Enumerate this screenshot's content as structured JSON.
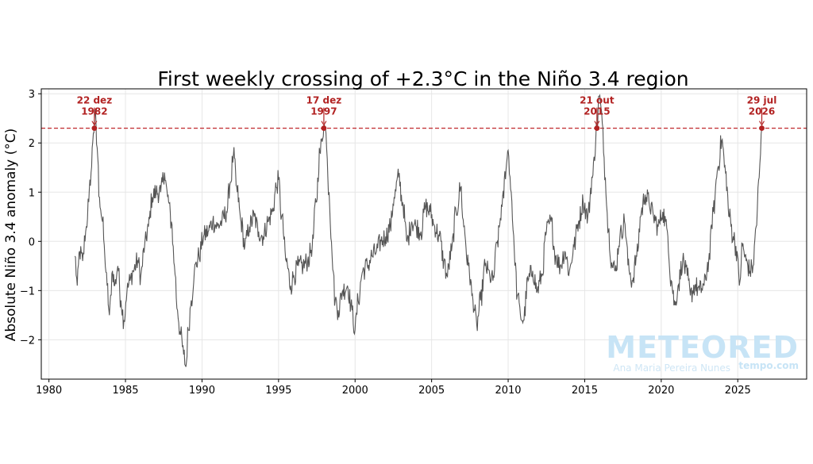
{
  "chart_data": {
    "type": "line",
    "title": "First weekly crossing of +2.3°C in the Niño 3.4 region",
    "xlabel": "",
    "ylabel": "Absolute Niño 3.4 anomaly (°C)",
    "xlim": [
      1979.5,
      2029.5
    ],
    "ylim": [
      -2.8,
      3.1
    ],
    "x_ticks": [
      1980,
      1985,
      1990,
      1995,
      2000,
      2005,
      2010,
      2015,
      2020,
      2025
    ],
    "y_ticks": [
      -2,
      -1,
      0,
      1,
      2,
      3
    ],
    "y_tick_labels": [
      "−2",
      "−1",
      "0",
      "1",
      "2",
      "3"
    ],
    "grid": true,
    "threshold": {
      "value": 2.3,
      "color": "#c0282d",
      "style": "dashed"
    },
    "line_color": "#555555",
    "series": [
      {
        "values_x_y": [
          [
            1981.7,
            -0.3
          ],
          [
            1981.85,
            -0.9
          ],
          [
            1982.0,
            -0.2
          ],
          [
            1982.2,
            -0.4
          ],
          [
            1982.4,
            0.2
          ],
          [
            1982.6,
            0.8
          ],
          [
            1982.75,
            1.4
          ],
          [
            1982.9,
            2.2
          ],
          [
            1983.0,
            2.6
          ],
          [
            1983.15,
            1.9
          ],
          [
            1983.3,
            0.9
          ],
          [
            1983.5,
            0.4
          ],
          [
            1983.65,
            -0.3
          ],
          [
            1983.8,
            -0.9
          ],
          [
            1983.95,
            -1.5
          ],
          [
            1984.15,
            -0.6
          ],
          [
            1984.3,
            -0.9
          ],
          [
            1984.5,
            -0.5
          ],
          [
            1984.7,
            -1.2
          ],
          [
            1984.9,
            -1.6
          ],
          [
            1985.1,
            -1.0
          ],
          [
            1985.3,
            -0.8
          ],
          [
            1985.5,
            -0.6
          ],
          [
            1985.8,
            -0.4
          ],
          [
            1986.0,
            -0.7
          ],
          [
            1986.25,
            -0.1
          ],
          [
            1986.5,
            0.3
          ],
          [
            1986.75,
            0.9
          ],
          [
            1987.0,
            1.0
          ],
          [
            1987.3,
            1.0
          ],
          [
            1987.55,
            1.4
          ],
          [
            1987.75,
            0.9
          ],
          [
            1988.0,
            0.4
          ],
          [
            1988.2,
            -0.5
          ],
          [
            1988.4,
            -1.4
          ],
          [
            1988.6,
            -1.9
          ],
          [
            1988.8,
            -2.3
          ],
          [
            1988.95,
            -2.55
          ],
          [
            1989.1,
            -1.8
          ],
          [
            1989.3,
            -1.2
          ],
          [
            1989.5,
            -0.6
          ],
          [
            1989.8,
            -0.3
          ],
          [
            1990.1,
            0.1
          ],
          [
            1990.4,
            0.2
          ],
          [
            1990.7,
            0.4
          ],
          [
            1991.0,
            0.3
          ],
          [
            1991.3,
            0.4
          ],
          [
            1991.6,
            0.6
          ],
          [
            1991.85,
            1.2
          ],
          [
            1992.05,
            1.75
          ],
          [
            1992.3,
            1.0
          ],
          [
            1992.55,
            0.4
          ],
          [
            1992.8,
            -0.1
          ],
          [
            1993.1,
            0.3
          ],
          [
            1993.4,
            0.5
          ],
          [
            1993.7,
            0.2
          ],
          [
            1994.0,
            0.1
          ],
          [
            1994.3,
            0.4
          ],
          [
            1994.6,
            0.6
          ],
          [
            1994.85,
            1.1
          ],
          [
            1995.0,
            1.25
          ],
          [
            1995.2,
            0.5
          ],
          [
            1995.5,
            -0.4
          ],
          [
            1995.8,
            -0.9
          ],
          [
            1996.0,
            -0.7
          ],
          [
            1996.3,
            -0.5
          ],
          [
            1996.6,
            -0.5
          ],
          [
            1996.9,
            -0.4
          ],
          [
            1997.2,
            -0.1
          ],
          [
            1997.45,
            0.8
          ],
          [
            1997.7,
            1.8
          ],
          [
            1997.96,
            2.35
          ],
          [
            1998.1,
            2.2
          ],
          [
            1998.3,
            1.0
          ],
          [
            1998.5,
            -0.3
          ],
          [
            1998.7,
            -1.2
          ],
          [
            1998.9,
            -1.4
          ],
          [
            1999.2,
            -1.0
          ],
          [
            1999.5,
            -0.9
          ],
          [
            1999.8,
            -1.4
          ],
          [
            2000.0,
            -1.8
          ],
          [
            2000.2,
            -1.2
          ],
          [
            2000.5,
            -0.6
          ],
          [
            2000.8,
            -0.5
          ],
          [
            2001.1,
            -0.3
          ],
          [
            2001.4,
            -0.2
          ],
          [
            2001.7,
            0.0
          ],
          [
            2002.0,
            0.1
          ],
          [
            2002.3,
            0.3
          ],
          [
            2002.55,
            0.9
          ],
          [
            2002.85,
            1.3
          ],
          [
            2003.1,
            0.8
          ],
          [
            2003.4,
            0.0
          ],
          [
            2003.7,
            0.4
          ],
          [
            2004.0,
            0.3
          ],
          [
            2004.3,
            0.2
          ],
          [
            2004.6,
            0.7
          ],
          [
            2004.9,
            0.6
          ],
          [
            2005.2,
            0.3
          ],
          [
            2005.5,
            0.1
          ],
          [
            2005.8,
            -0.4
          ],
          [
            2006.0,
            -0.7
          ],
          [
            2006.3,
            -0.2
          ],
          [
            2006.6,
            0.6
          ],
          [
            2006.9,
            1.1
          ],
          [
            2007.1,
            0.3
          ],
          [
            2007.4,
            -0.5
          ],
          [
            2007.7,
            -1.2
          ],
          [
            2007.95,
            -1.7
          ],
          [
            2008.2,
            -1.2
          ],
          [
            2008.5,
            -0.5
          ],
          [
            2008.8,
            -0.7
          ],
          [
            2009.0,
            -0.8
          ],
          [
            2009.3,
            0.0
          ],
          [
            2009.6,
            0.7
          ],
          [
            2009.9,
            1.6
          ],
          [
            2010.0,
            1.85
          ],
          [
            2010.2,
            1.0
          ],
          [
            2010.4,
            -0.2
          ],
          [
            2010.6,
            -1.1
          ],
          [
            2010.8,
            -1.5
          ],
          [
            2011.0,
            -1.6
          ],
          [
            2011.3,
            -0.8
          ],
          [
            2011.6,
            -0.6
          ],
          [
            2011.9,
            -1.0
          ],
          [
            2012.2,
            -0.7
          ],
          [
            2012.5,
            0.2
          ],
          [
            2012.8,
            0.4
          ],
          [
            2013.1,
            -0.3
          ],
          [
            2013.4,
            -0.5
          ],
          [
            2013.7,
            -0.2
          ],
          [
            2014.0,
            -0.6
          ],
          [
            2014.3,
            -0.1
          ],
          [
            2014.6,
            0.4
          ],
          [
            2014.9,
            0.8
          ],
          [
            2015.2,
            0.5
          ],
          [
            2015.5,
            1.3
          ],
          [
            2015.8,
            2.3
          ],
          [
            2015.95,
            2.95
          ],
          [
            2016.15,
            2.4
          ],
          [
            2016.35,
            1.3
          ],
          [
            2016.55,
            0.2
          ],
          [
            2016.8,
            -0.5
          ],
          [
            2017.0,
            -0.6
          ],
          [
            2017.3,
            0.1
          ],
          [
            2017.6,
            0.4
          ],
          [
            2017.9,
            -0.6
          ],
          [
            2018.1,
            -0.8
          ],
          [
            2018.4,
            -0.3
          ],
          [
            2018.7,
            0.6
          ],
          [
            2018.95,
            0.95
          ],
          [
            2019.2,
            0.8
          ],
          [
            2019.5,
            0.5
          ],
          [
            2019.8,
            0.3
          ],
          [
            2020.1,
            0.6
          ],
          [
            2020.4,
            0.2
          ],
          [
            2020.65,
            -0.8
          ],
          [
            2020.9,
            -1.3
          ],
          [
            2021.1,
            -0.9
          ],
          [
            2021.4,
            -0.4
          ],
          [
            2021.7,
            -0.7
          ],
          [
            2021.9,
            -1.1
          ],
          [
            2022.2,
            -0.9
          ],
          [
            2022.5,
            -1.0
          ],
          [
            2022.8,
            -0.9
          ],
          [
            2023.1,
            -0.4
          ],
          [
            2023.4,
            0.6
          ],
          [
            2023.7,
            1.5
          ],
          [
            2023.95,
            2.05
          ],
          [
            2024.2,
            1.4
          ],
          [
            2024.45,
            0.5
          ],
          [
            2024.7,
            0.1
          ],
          [
            2024.95,
            -0.2
          ],
          [
            2025.1,
            -0.9
          ],
          [
            2025.3,
            -0.1
          ],
          [
            2025.55,
            -0.4
          ],
          [
            2025.8,
            -0.6
          ],
          [
            2026.0,
            -0.5
          ],
          [
            2026.2,
            0.3
          ],
          [
            2026.4,
            1.3
          ],
          [
            2026.57,
            2.3
          ]
        ]
      }
    ],
    "annotations": [
      {
        "line1": "22 dez",
        "line2": "1982",
        "x": 1982.97,
        "y": 2.3
      },
      {
        "line1": "17 dez",
        "line2": "1997",
        "x": 1997.96,
        "y": 2.3
      },
      {
        "line1": "21 out",
        "line2": "2015",
        "x": 2015.8,
        "y": 2.3
      },
      {
        "line1": "29 jul",
        "line2": "2026",
        "x": 2026.57,
        "y": 2.3
      }
    ]
  },
  "watermark": {
    "brand": "METEORED",
    "author": "Ana Maria Pereira Nunes",
    "site": "tempo.com"
  }
}
